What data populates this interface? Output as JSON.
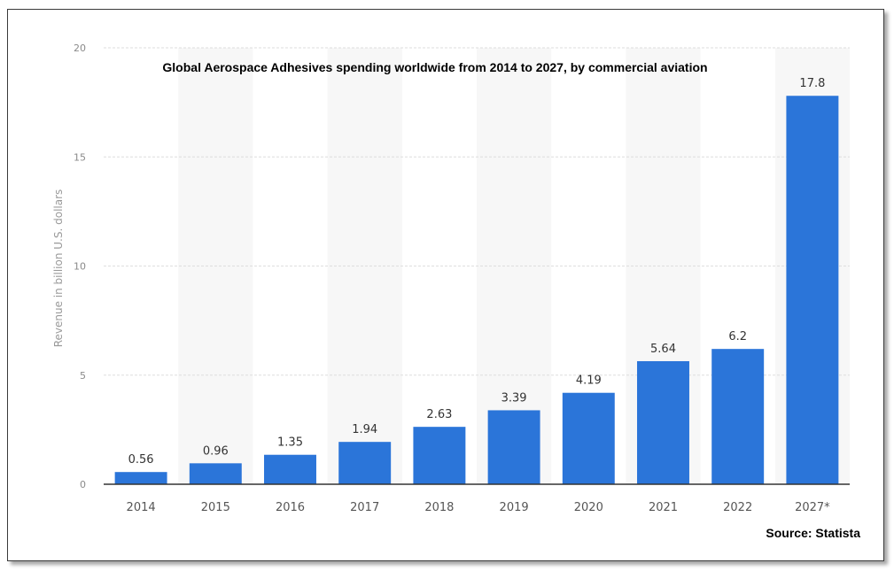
{
  "chart_data": {
    "type": "bar",
    "title": "Global Aerospace Adhesives spending worldwide from 2014 to 2027, by commercial aviation",
    "ylabel": "Revenue in billion U.S. dollars",
    "xlabel": "",
    "categories": [
      "2014",
      "2015",
      "2016",
      "2017",
      "2018",
      "2019",
      "2020",
      "2021",
      "2022",
      "2027*"
    ],
    "values": [
      0.56,
      0.96,
      1.35,
      1.94,
      2.63,
      3.39,
      4.19,
      5.64,
      6.2,
      17.8
    ],
    "value_labels": [
      "0.56",
      "0.96",
      "1.35",
      "1.94",
      "2.63",
      "3.39",
      "4.19",
      "5.64",
      "6.2",
      "17.8"
    ],
    "ylim": [
      0,
      20
    ],
    "yticks": [
      "0",
      "5",
      "10",
      "15",
      "20"
    ],
    "ytick_values": [
      0,
      5,
      10,
      15,
      20
    ],
    "grid": true,
    "bar_color": "#2b75d9",
    "source": "Source: Statista"
  }
}
